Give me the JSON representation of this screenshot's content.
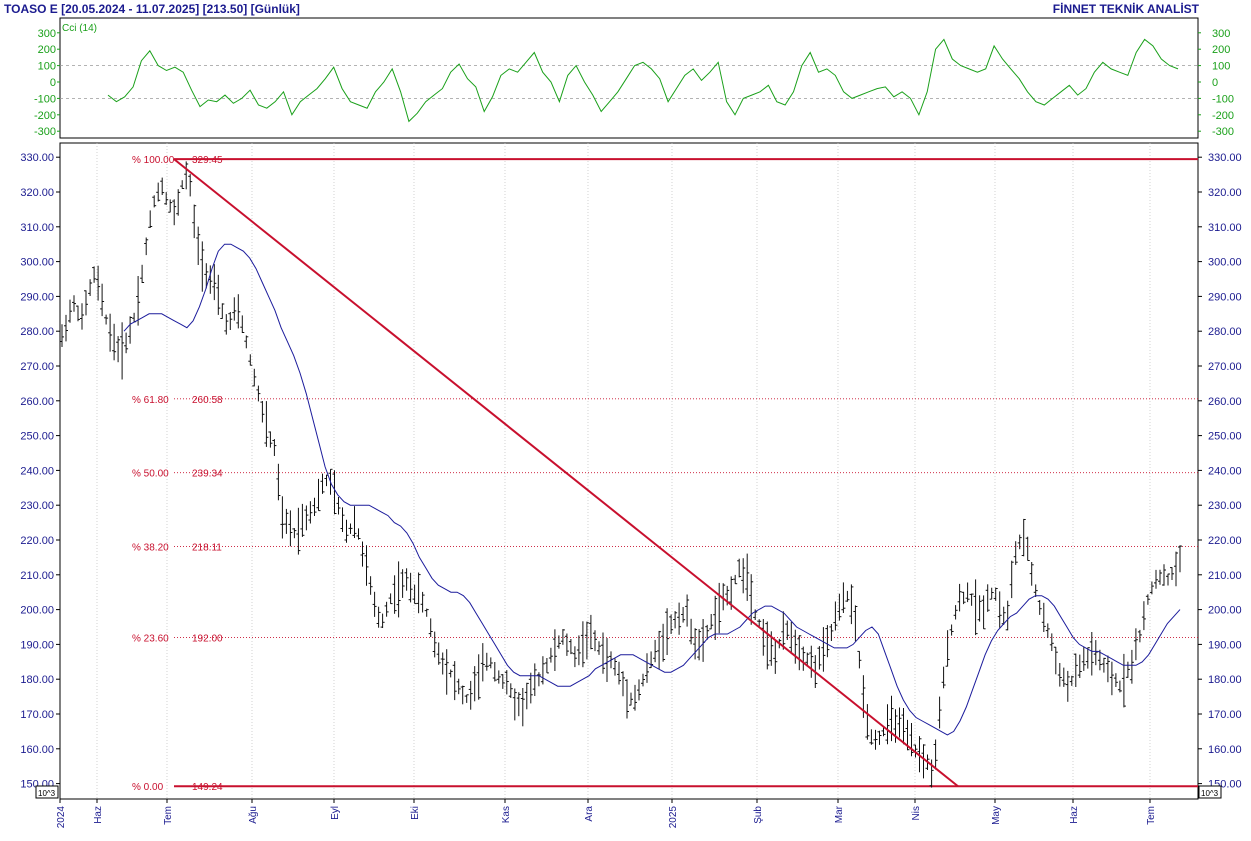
{
  "header": {
    "title_left": "TOASO E  [20.05.2024 - 11.07.2025]  [213.50]  [Günlük]",
    "title_right": "FİNNET TEKNİK ANALİST"
  },
  "cci_panel": {
    "label": "Cci (14)",
    "ticks": [
      300,
      200,
      100,
      0,
      -100,
      -200,
      -300
    ],
    "line_color": "#1aa01a"
  },
  "chart_data": {
    "type": "ohlc",
    "ylim": [
      149,
      331
    ],
    "yticks": [
      330,
      320,
      310,
      300,
      290,
      280,
      270,
      260,
      250,
      240,
      230,
      220,
      210,
      200,
      190,
      180,
      170,
      160,
      150
    ],
    "y_unit_label": "10^3",
    "x_months": [
      "2024",
      "Haz",
      "Tem",
      "Ağu",
      "Eyl",
      "Eki",
      "Kas",
      "Ara",
      "2025",
      "Şub",
      "Mar",
      "Nis",
      "May",
      "Haz",
      "Tem"
    ],
    "fibonacci": [
      {
        "label": "% 100.00",
        "value": 329.45,
        "text": "329.45"
      },
      {
        "label": "% 61.80",
        "value": 260.58,
        "text": "260.58"
      },
      {
        "label": "% 50.00",
        "value": 239.34,
        "text": "239.34"
      },
      {
        "label": "% 38.20",
        "value": 218.11,
        "text": "218.11"
      },
      {
        "label": "% 23.60",
        "value": 192.0,
        "text": "192.00"
      },
      {
        "label": "% 0.00",
        "value": 149.24,
        "text": "149.24"
      }
    ],
    "price_path": [
      278,
      285,
      288,
      283,
      291,
      297,
      288,
      281,
      276,
      274,
      279,
      285,
      296,
      309,
      319,
      322,
      317,
      313,
      322,
      326,
      309,
      300,
      296,
      292,
      286,
      281,
      286,
      283,
      274,
      266,
      258,
      250,
      246,
      226,
      224,
      222,
      225,
      228,
      230,
      235,
      238,
      233,
      226,
      222,
      226,
      218,
      210,
      200,
      196,
      202,
      205,
      207,
      208,
      205,
      203,
      198,
      190,
      186,
      183,
      180,
      176,
      174,
      178,
      182,
      186,
      183,
      180,
      178,
      174,
      172,
      176,
      178,
      182,
      185,
      188,
      192,
      190,
      187,
      189,
      193,
      191,
      188,
      186,
      184,
      180,
      176,
      174,
      178,
      183,
      187,
      191,
      194,
      197,
      199,
      198,
      192,
      188,
      194,
      198,
      201,
      204,
      208,
      212,
      210,
      200,
      195,
      190,
      186,
      191,
      194,
      191,
      188,
      186,
      183,
      186,
      190,
      196,
      201,
      204,
      200,
      182,
      168,
      162,
      164,
      166,
      169,
      166,
      163,
      160,
      158,
      156,
      152,
      172,
      188,
      198,
      203,
      205,
      202,
      199,
      203,
      206,
      200,
      196,
      214,
      220,
      218,
      208,
      200,
      195,
      188,
      182,
      178,
      180,
      184,
      186,
      188,
      185,
      182,
      180,
      178,
      182,
      186,
      193,
      201,
      208,
      210,
      208,
      211,
      213.5
    ],
    "ma_path": [
      280,
      282,
      283,
      284,
      285,
      285,
      285,
      284,
      283,
      282,
      281,
      283,
      287,
      292,
      298,
      303,
      305,
      305,
      304,
      303,
      301,
      298,
      294,
      290,
      286,
      281,
      277,
      273,
      268,
      262,
      255,
      248,
      241,
      236,
      233,
      231,
      230,
      230,
      230,
      230,
      229,
      228,
      227,
      225,
      224,
      222,
      219,
      215,
      212,
      209,
      207,
      206,
      205,
      205,
      204,
      202,
      199,
      196,
      193,
      190,
      187,
      184,
      182,
      181,
      181,
      181,
      181,
      180,
      179,
      178,
      178,
      178,
      179,
      180,
      181,
      183,
      184,
      185,
      186,
      187,
      187,
      187,
      186,
      185,
      184,
      183,
      182,
      182,
      183,
      184,
      186,
      188,
      190,
      192,
      193,
      193,
      193,
      194,
      195,
      197,
      199,
      200,
      201,
      201,
      200,
      199,
      197,
      195,
      194,
      193,
      192,
      191,
      190,
      189,
      189,
      189,
      190,
      192,
      194,
      195,
      193,
      188,
      183,
      178,
      174,
      171,
      169,
      168,
      167,
      166,
      165,
      164,
      165,
      168,
      172,
      177,
      182,
      187,
      191,
      194,
      196,
      198,
      199,
      201,
      203,
      204,
      204,
      203,
      201,
      198,
      195,
      192,
      190,
      189,
      188,
      188,
      187,
      186,
      185,
      184,
      184,
      184,
      185,
      187,
      190,
      193,
      196,
      198,
      200
    ],
    "cci_path": [
      -80,
      -120,
      -90,
      -30,
      130,
      190,
      100,
      70,
      90,
      60,
      -50,
      -150,
      -110,
      -120,
      -80,
      -130,
      -100,
      -50,
      -140,
      -160,
      -120,
      -60,
      -200,
      -120,
      -80,
      -40,
      20,
      90,
      -40,
      -120,
      -140,
      -160,
      -60,
      0,
      80,
      -60,
      -240,
      -190,
      -120,
      -80,
      -40,
      60,
      110,
      20,
      -30,
      -180,
      -90,
      40,
      80,
      60,
      120,
      180,
      60,
      0,
      -120,
      40,
      100,
      0,
      -80,
      -180,
      -120,
      -60,
      20,
      100,
      120,
      80,
      20,
      -120,
      -40,
      40,
      80,
      10,
      60,
      120,
      -120,
      -200,
      -100,
      -80,
      -60,
      -20,
      -120,
      -140,
      -60,
      100,
      180,
      60,
      80,
      40,
      -60,
      -100,
      -80,
      -60,
      -40,
      -30,
      -90,
      -60,
      -100,
      -200,
      -60,
      200,
      260,
      140,
      100,
      80,
      60,
      80,
      220,
      140,
      80,
      20,
      -60,
      -120,
      -140,
      -100,
      -60,
      -20,
      -80,
      -40,
      60,
      120,
      80,
      60,
      40,
      180,
      260,
      220,
      140,
      100,
      80
    ]
  },
  "trendline": {
    "from_value": 329.45,
    "to_value": 149.24
  },
  "colors": {
    "axis_text": "#1b1b8f",
    "fib_red": "#c8102e",
    "price_bar": "#111111",
    "ma_line": "#1c1c9c",
    "cci_line": "#1aa01a",
    "grid": "#b0b0b0"
  }
}
